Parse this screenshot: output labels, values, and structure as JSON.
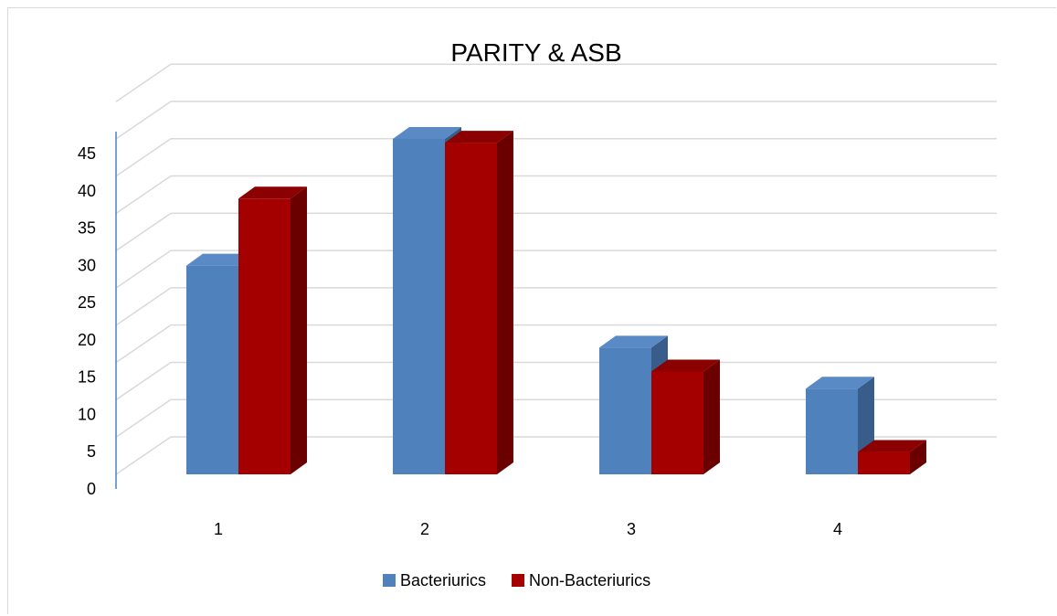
{
  "chart_data": {
    "type": "bar",
    "title": "PARITY & ASB",
    "categories": [
      "1",
      "2",
      "3",
      "4"
    ],
    "series": [
      {
        "name": "Bacteriurics",
        "values": [
          28,
          45,
          17,
          11.5
        ],
        "color": "#4F81BD",
        "side_color": "#385D8A",
        "top_color": "#5A8AC6"
      },
      {
        "name": "Non-Bacteriurics",
        "values": [
          37,
          44.5,
          13.8,
          3
        ],
        "color": "#A50000",
        "side_color": "#6B0000",
        "top_color": "#8B0000"
      }
    ],
    "ylim": [
      0,
      45
    ],
    "yticks": [
      0,
      5,
      10,
      15,
      20,
      25,
      30,
      35,
      40,
      45
    ],
    "ylabel": "",
    "xlabel": "",
    "grid": true,
    "legend_position": "bottom"
  }
}
